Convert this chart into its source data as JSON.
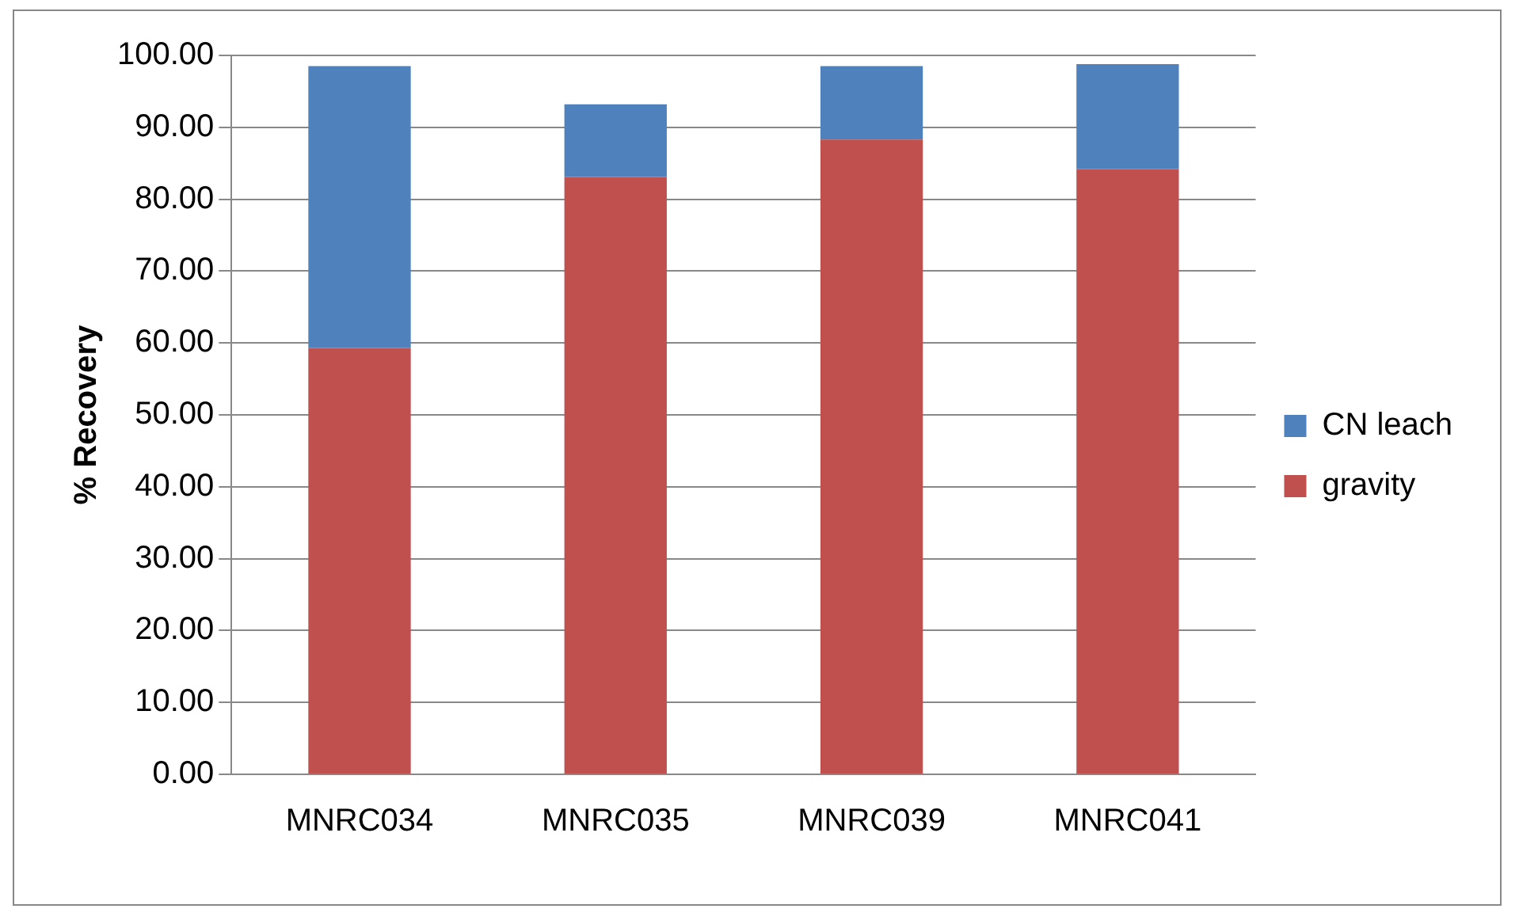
{
  "chart_data": {
    "type": "bar",
    "stacked": true,
    "ylabel": "% Recovery",
    "categories": [
      "MNRC034",
      "MNRC035",
      "MNRC039",
      "MNRC041"
    ],
    "series": [
      {
        "name": "gravity",
        "color": "#c0504d",
        "values": [
          59.3,
          83.1,
          88.3,
          84.2
        ]
      },
      {
        "name": "CN leach",
        "color": "#4f81bd",
        "values": [
          39.2,
          10.1,
          10.2,
          14.6
        ]
      }
    ],
    "ylim": [
      0,
      100
    ],
    "yticks": [
      {
        "value": 0,
        "label": "0.00"
      },
      {
        "value": 10,
        "label": "10.00"
      },
      {
        "value": 20,
        "label": "20.00"
      },
      {
        "value": 30,
        "label": "30.00"
      },
      {
        "value": 40,
        "label": "40.00"
      },
      {
        "value": 50,
        "label": "50.00"
      },
      {
        "value": 60,
        "label": "60.00"
      },
      {
        "value": 70,
        "label": "70.00"
      },
      {
        "value": 80,
        "label": "80.00"
      },
      {
        "value": 90,
        "label": "90.00"
      },
      {
        "value": 100,
        "label": "100.00"
      }
    ],
    "grid": "y",
    "legend": "right"
  }
}
